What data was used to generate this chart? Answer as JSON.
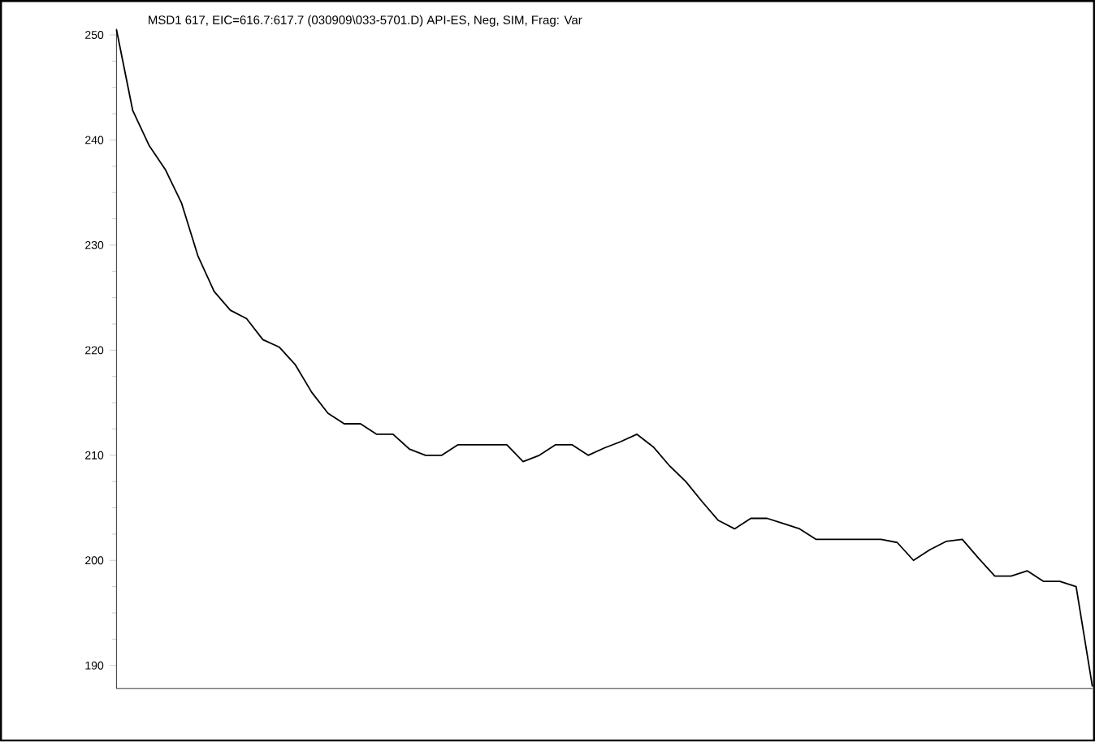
{
  "chart_data": {
    "type": "line",
    "title": "MSD1 617, EIC=616.7:617.7 (030909\\033-5701.D)    API-ES, Neg, SIM, Frag: Var",
    "categories": [
      null,
      null,
      null,
      null,
      null,
      null,
      null,
      null,
      null,
      null,
      null,
      null,
      null,
      null,
      null,
      null,
      null,
      null,
      null,
      null,
      null,
      null,
      null,
      null,
      null,
      null,
      null,
      null,
      null,
      null,
      null,
      null,
      null,
      null,
      null,
      null,
      null,
      null,
      null,
      null,
      null,
      null,
      null,
      null,
      null,
      null,
      null,
      null,
      null,
      null,
      null,
      null,
      null,
      null,
      null,
      null,
      null,
      null,
      null,
      null,
      null
    ],
    "values": [
      250.5,
      242.8,
      239.5,
      237.2,
      234,
      229,
      225.6,
      223.8,
      223,
      221,
      220.3,
      218.6,
      216,
      214,
      213,
      213,
      212,
      212,
      210.6,
      210,
      210,
      211,
      211,
      211,
      211,
      209.4,
      210,
      211,
      211,
      210,
      210.7,
      211.3,
      212,
      210.8,
      209,
      207.5,
      205.6,
      203.8,
      203,
      204,
      204,
      203.5,
      203,
      202,
      202,
      202,
      202,
      202,
      201.7,
      200,
      201,
      201.8,
      202,
      200.2,
      198.5,
      198.5,
      199,
      198,
      198,
      197.5,
      188
    ],
    "color": "#000000",
    "ylim": [
      187.8,
      250.6
    ],
    "yticks": [
      190,
      200,
      210,
      220,
      230,
      240,
      250
    ],
    "grid": false
  }
}
